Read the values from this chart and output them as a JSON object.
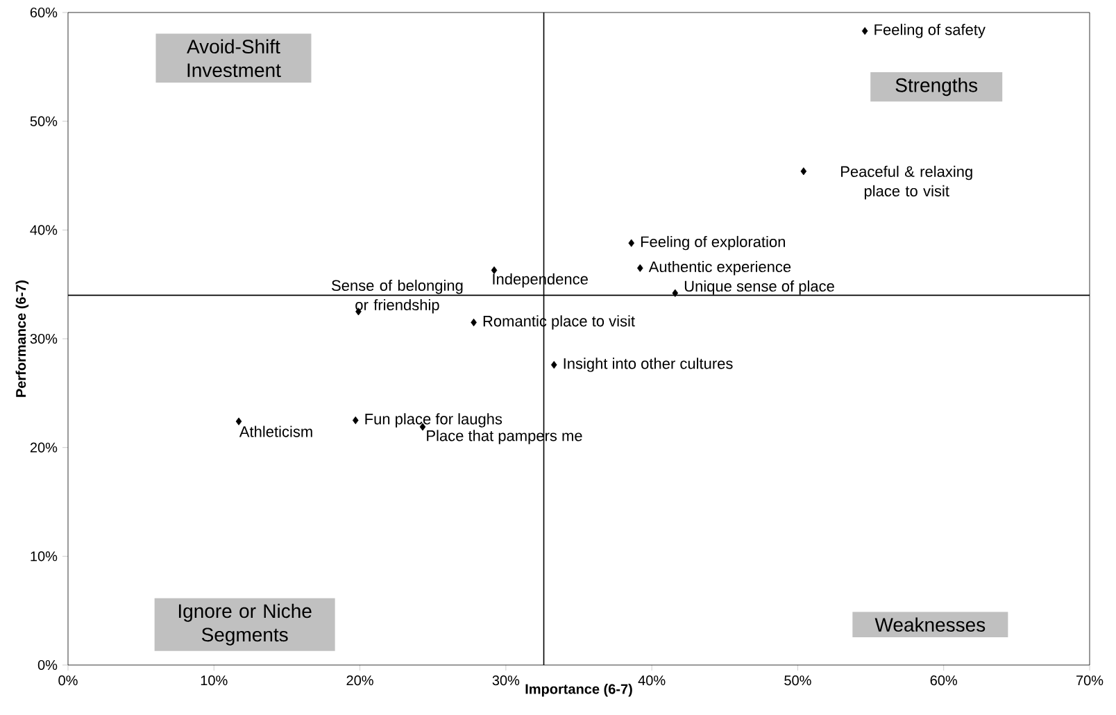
{
  "chart_data": {
    "type": "scatter",
    "xlabel": "Importance (6-7)",
    "ylabel": "Performance (6-7)",
    "xlim": [
      0,
      70
    ],
    "ylim": [
      0,
      60
    ],
    "xticks": [
      {
        "value": 0,
        "label": "0%"
      },
      {
        "value": 10,
        "label": "10%"
      },
      {
        "value": 20,
        "label": "20%"
      },
      {
        "value": 30,
        "label": "30%"
      },
      {
        "value": 40,
        "label": "40%"
      },
      {
        "value": 50,
        "label": "50%"
      },
      {
        "value": 60,
        "label": "60%"
      },
      {
        "value": 70,
        "label": "70%"
      }
    ],
    "yticks": [
      {
        "value": 0,
        "label": "0%"
      },
      {
        "value": 10,
        "label": "10%"
      },
      {
        "value": 20,
        "label": "20%"
      },
      {
        "value": 30,
        "label": "30%"
      },
      {
        "value": 40,
        "label": "40%"
      },
      {
        "value": 50,
        "label": "50%"
      },
      {
        "value": 60,
        "label": "60%"
      }
    ],
    "grid": false,
    "marker": "diamond",
    "series": [
      {
        "color": "#000000",
        "x": [
          54.6,
          50.4,
          38.6,
          39.2,
          41.6,
          29.2,
          19.9,
          27.8,
          33.3,
          19.7,
          11.7,
          24.3
        ],
        "values": [
          58.3,
          45.4,
          38.8,
          36.5,
          34.2,
          36.3,
          32.5,
          31.5,
          27.6,
          22.5,
          22.4,
          21.9
        ]
      }
    ],
    "ref_lines": [
      {
        "axis": "x",
        "value": 32.6,
        "color": "#000000"
      },
      {
        "axis": "y",
        "value": 34.0,
        "color": "#000000"
      }
    ],
    "annotations": [
      {
        "text": "Feeling of safety",
        "x": 54.6,
        "y": 58.3
      },
      {
        "text": "Peaceful & relaxing place to visit",
        "x": 50.4,
        "y": 45.4
      },
      {
        "text": "Feeling of exploration",
        "x": 38.6,
        "y": 38.8
      },
      {
        "text": "Authentic experience",
        "x": 39.2,
        "y": 36.5
      },
      {
        "text": "Unique sense of place",
        "x": 41.6,
        "y": 34.2
      },
      {
        "text": "Independence",
        "x": 29.2,
        "y": 36.3
      },
      {
        "text": "Sense of belonging or friendship",
        "x": 19.9,
        "y": 32.5
      },
      {
        "text": "Romantic place to visit",
        "x": 27.8,
        "y": 31.5
      },
      {
        "text": "Insight into other cultures",
        "x": 33.3,
        "y": 27.6
      },
      {
        "text": "Fun place for laughs",
        "x": 19.7,
        "y": 22.5
      },
      {
        "text": "Athleticism",
        "x": 11.7,
        "y": 22.4
      },
      {
        "text": "Place that pampers me",
        "x": 24.3,
        "y": 21.9
      },
      "Avoid-Shift Investment",
      "Strengths",
      "Ignore or Niche Segments",
      "Weaknesses"
    ]
  }
}
